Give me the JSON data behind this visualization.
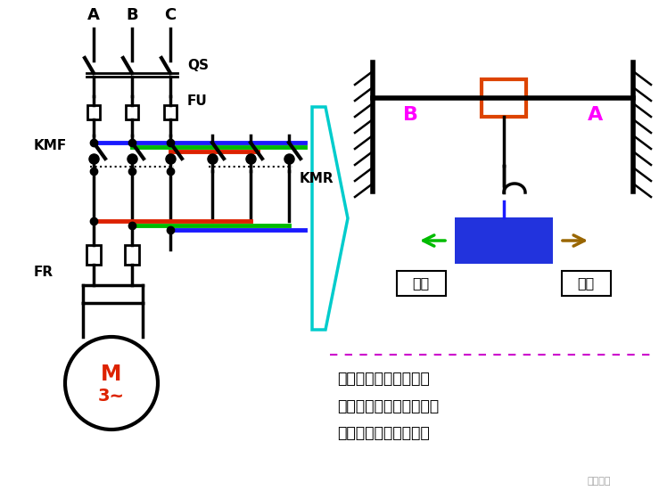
{
  "bg_color": "#ffffff",
  "wire_blue": "#1a1aff",
  "wire_green": "#00bb00",
  "wire_red": "#dd2200",
  "wire_black": "#000000",
  "wire_cyan": "#00cccc",
  "motor_text_color": "#dd2200",
  "magenta_color": "#ff00ff",
  "orange_color": "#dd4400",
  "blue_box_color": "#2233dd",
  "arrow_green": "#00bb00",
  "arrow_brown": "#996600",
  "dotted_magenta": "#cc00cc",
  "text_annotation": "行程控制实质为电机的\n正反转控制，只是在行程\n的终端要加限位开关。",
  "label_A": "A",
  "label_B": "B",
  "label_C": "C",
  "label_QS": "QS",
  "label_FU": "FU",
  "label_KMF": "KMF",
  "label_KMR": "KMR",
  "label_FR": "FR",
  "label_M": "M",
  "label_3": "3~",
  "label_Bpoint": "B",
  "label_Apoint": "A",
  "label_nicheng": "逆程",
  "label_zhengcheng": "正程",
  "watermark": "筑龙电气"
}
